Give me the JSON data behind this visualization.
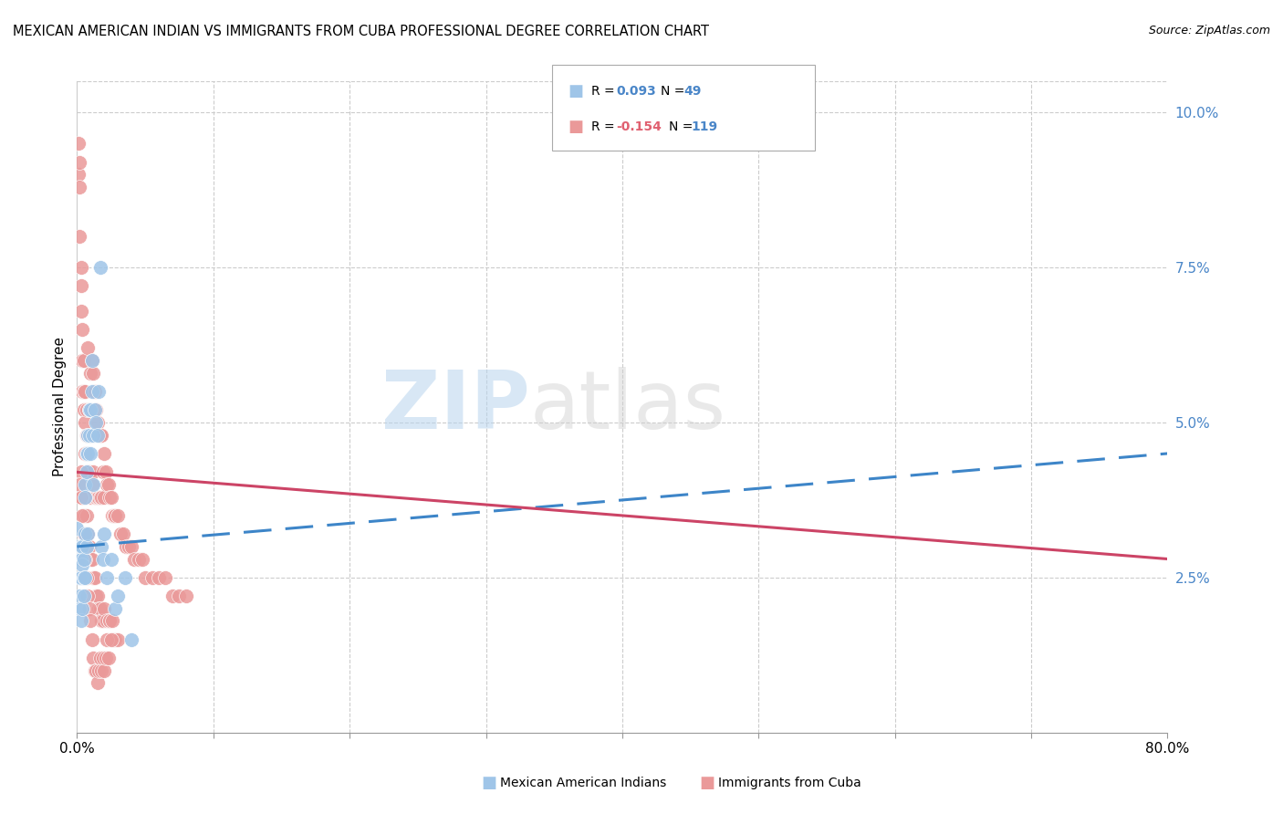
{
  "title": "MEXICAN AMERICAN INDIAN VS IMMIGRANTS FROM CUBA PROFESSIONAL DEGREE CORRELATION CHART",
  "source": "Source: ZipAtlas.com",
  "ylabel": "Professional Degree",
  "right_yticks": [
    "10.0%",
    "7.5%",
    "5.0%",
    "2.5%"
  ],
  "right_ytick_vals": [
    0.1,
    0.075,
    0.05,
    0.025
  ],
  "x_range": [
    0.0,
    0.8
  ],
  "y_range": [
    0.0,
    0.105
  ],
  "blue_color": "#9fc5e8",
  "pink_color": "#ea9999",
  "blue_line_color": "#3d85c8",
  "pink_line_color": "#cc4466",
  "watermark_zip": "ZIP",
  "watermark_atlas": "atlas",
  "blue_scatter_x": [
    0.0,
    0.001,
    0.001,
    0.002,
    0.002,
    0.002,
    0.002,
    0.003,
    0.003,
    0.003,
    0.003,
    0.004,
    0.004,
    0.004,
    0.005,
    0.005,
    0.005,
    0.006,
    0.006,
    0.006,
    0.006,
    0.007,
    0.007,
    0.007,
    0.008,
    0.008,
    0.008,
    0.009,
    0.009,
    0.01,
    0.01,
    0.011,
    0.011,
    0.012,
    0.012,
    0.013,
    0.014,
    0.015,
    0.016,
    0.017,
    0.018,
    0.019,
    0.02,
    0.022,
    0.025,
    0.028,
    0.03,
    0.035,
    0.04
  ],
  "blue_scatter_y": [
    0.033,
    0.03,
    0.028,
    0.028,
    0.025,
    0.022,
    0.02,
    0.03,
    0.028,
    0.025,
    0.018,
    0.03,
    0.027,
    0.02,
    0.028,
    0.025,
    0.022,
    0.04,
    0.038,
    0.032,
    0.025,
    0.045,
    0.042,
    0.03,
    0.048,
    0.045,
    0.032,
    0.052,
    0.048,
    0.052,
    0.045,
    0.06,
    0.055,
    0.048,
    0.04,
    0.052,
    0.05,
    0.048,
    0.055,
    0.075,
    0.03,
    0.028,
    0.032,
    0.025,
    0.028,
    0.02,
    0.022,
    0.025,
    0.015
  ],
  "pink_scatter_x": [
    0.001,
    0.001,
    0.002,
    0.002,
    0.002,
    0.003,
    0.003,
    0.003,
    0.004,
    0.004,
    0.004,
    0.005,
    0.005,
    0.005,
    0.006,
    0.006,
    0.006,
    0.007,
    0.007,
    0.007,
    0.008,
    0.008,
    0.008,
    0.009,
    0.009,
    0.01,
    0.01,
    0.01,
    0.011,
    0.011,
    0.012,
    0.012,
    0.013,
    0.013,
    0.014,
    0.014,
    0.015,
    0.015,
    0.016,
    0.016,
    0.017,
    0.017,
    0.018,
    0.018,
    0.019,
    0.02,
    0.02,
    0.021,
    0.022,
    0.023,
    0.024,
    0.025,
    0.026,
    0.027,
    0.028,
    0.03,
    0.032,
    0.034,
    0.036,
    0.038,
    0.04,
    0.042,
    0.045,
    0.048,
    0.05,
    0.055,
    0.06,
    0.065,
    0.07,
    0.075,
    0.08,
    0.003,
    0.004,
    0.005,
    0.006,
    0.007,
    0.008,
    0.009,
    0.01,
    0.011,
    0.012,
    0.013,
    0.014,
    0.015,
    0.016,
    0.017,
    0.018,
    0.019,
    0.02,
    0.022,
    0.024,
    0.026,
    0.028,
    0.03,
    0.002,
    0.003,
    0.004,
    0.005,
    0.006,
    0.007,
    0.008,
    0.009,
    0.01,
    0.011,
    0.012,
    0.013,
    0.014,
    0.015,
    0.016,
    0.017,
    0.018,
    0.019,
    0.02,
    0.021,
    0.022,
    0.023,
    0.024,
    0.025,
    0.026
  ],
  "pink_scatter_y": [
    0.095,
    0.09,
    0.092,
    0.088,
    0.08,
    0.075,
    0.072,
    0.068,
    0.065,
    0.06,
    0.055,
    0.06,
    0.055,
    0.052,
    0.055,
    0.05,
    0.045,
    0.052,
    0.048,
    0.042,
    0.062,
    0.048,
    0.042,
    0.052,
    0.042,
    0.058,
    0.048,
    0.038,
    0.06,
    0.04,
    0.058,
    0.042,
    0.055,
    0.038,
    0.052,
    0.038,
    0.05,
    0.038,
    0.048,
    0.038,
    0.048,
    0.038,
    0.048,
    0.038,
    0.042,
    0.045,
    0.038,
    0.042,
    0.04,
    0.04,
    0.038,
    0.038,
    0.035,
    0.035,
    0.035,
    0.035,
    0.032,
    0.032,
    0.03,
    0.03,
    0.03,
    0.028,
    0.028,
    0.028,
    0.025,
    0.025,
    0.025,
    0.025,
    0.022,
    0.022,
    0.022,
    0.042,
    0.038,
    0.035,
    0.038,
    0.035,
    0.032,
    0.03,
    0.028,
    0.028,
    0.025,
    0.025,
    0.022,
    0.022,
    0.02,
    0.02,
    0.018,
    0.018,
    0.02,
    0.018,
    0.018,
    0.015,
    0.015,
    0.015,
    0.04,
    0.038,
    0.035,
    0.032,
    0.028,
    0.025,
    0.022,
    0.02,
    0.018,
    0.015,
    0.012,
    0.01,
    0.01,
    0.008,
    0.01,
    0.012,
    0.01,
    0.012,
    0.01,
    0.012,
    0.015,
    0.012,
    0.018,
    0.015,
    0.018
  ],
  "blue_trend_x0": 0.0,
  "blue_trend_x1": 0.8,
  "blue_trend_y0": 0.03,
  "blue_trend_y1": 0.045,
  "pink_trend_x0": 0.0,
  "pink_trend_x1": 0.8,
  "pink_trend_y0": 0.042,
  "pink_trend_y1": 0.028
}
